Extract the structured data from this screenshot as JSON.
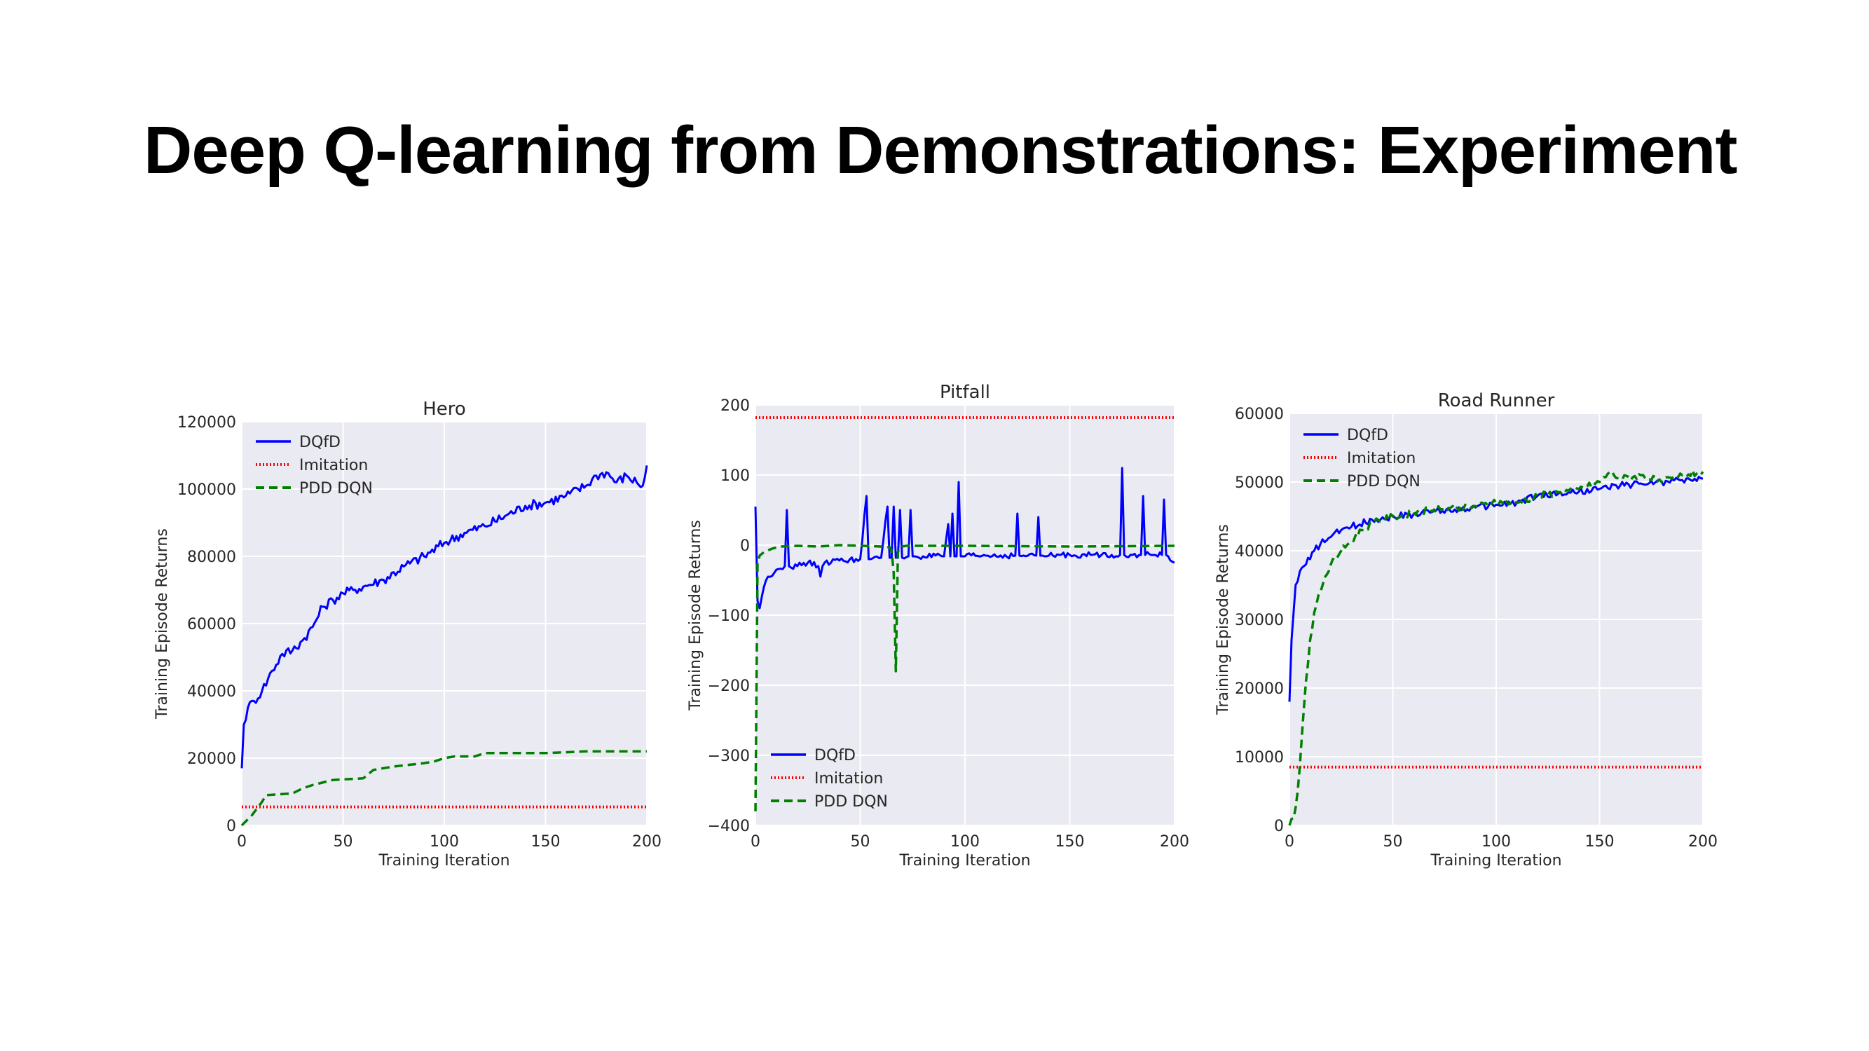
{
  "slide": {
    "title": "Deep Q-learning from Demonstrations: Experiment"
  },
  "chart_data": [
    {
      "type": "line",
      "title": "Hero",
      "xlabel": "Training Iteration",
      "ylabel": "Training Episode Returns",
      "xlim": [
        0,
        200
      ],
      "ylim": [
        0,
        120000
      ],
      "xticks": [
        0,
        50,
        100,
        150,
        200
      ],
      "yticks": [
        0,
        20000,
        40000,
        60000,
        80000,
        100000,
        120000
      ],
      "grid": true,
      "legend": "top-left",
      "series": [
        {
          "name": "DQfD",
          "color": "#0000ff",
          "style": "solid",
          "noise": 1500,
          "x": [
            0,
            1,
            3,
            6,
            10,
            15,
            20,
            25,
            30,
            35,
            40,
            45,
            50,
            55,
            60,
            70,
            80,
            90,
            100,
            110,
            120,
            130,
            140,
            150,
            160,
            170,
            175,
            180,
            185,
            190,
            195,
            198,
            200
          ],
          "y": [
            17000,
            30000,
            35000,
            37000,
            40000,
            46000,
            51000,
            52000,
            55000,
            59000,
            65000,
            67000,
            69000,
            70000,
            71000,
            73000,
            77000,
            80000,
            84000,
            87000,
            89000,
            92000,
            95000,
            96000,
            98000,
            101000,
            104000,
            105000,
            102000,
            104000,
            102000,
            101000,
            107000
          ]
        },
        {
          "name": "Imitation",
          "color": "#ff0000",
          "style": "dotted",
          "noise": 0,
          "x": [
            0,
            200
          ],
          "y": [
            5500,
            5500
          ]
        },
        {
          "name": "PDD DQN",
          "color": "#008000",
          "style": "dashed",
          "noise": 0,
          "x": [
            0,
            5,
            10,
            12,
            25,
            30,
            35,
            45,
            60,
            65,
            75,
            90,
            95,
            100,
            105,
            115,
            120,
            150,
            170,
            200
          ],
          "y": [
            0,
            3000,
            7000,
            9000,
            9500,
            11000,
            12000,
            13500,
            14000,
            16500,
            17500,
            18500,
            19000,
            20000,
            20500,
            20500,
            21500,
            21500,
            22000,
            22000
          ]
        }
      ]
    },
    {
      "type": "line",
      "title": "Pitfall",
      "xlabel": "Training Iteration",
      "ylabel": "Training Episode Returns",
      "xlim": [
        0,
        200
      ],
      "ylim": [
        -400,
        200
      ],
      "xticks": [
        0,
        50,
        100,
        150,
        200
      ],
      "yticks": [
        -400,
        -300,
        -200,
        -100,
        0,
        100,
        200
      ],
      "grid": true,
      "legend": "bottom-left",
      "series": [
        {
          "name": "DQfD",
          "color": "#0000ff",
          "style": "solid",
          "noise": 4,
          "x": [
            0,
            1,
            2,
            4,
            6,
            10,
            14,
            15,
            16,
            20,
            25,
            30,
            31,
            32,
            33,
            40,
            50,
            53,
            54,
            55,
            60,
            63,
            64,
            65,
            66,
            67,
            68,
            69,
            70,
            73,
            74,
            75,
            80,
            90,
            92,
            93,
            94,
            95,
            96,
            97,
            98,
            99,
            100,
            110,
            124,
            125,
            126,
            130,
            134,
            135,
            136,
            140,
            150,
            160,
            170,
            174,
            175,
            176,
            180,
            184,
            185,
            186,
            190,
            194,
            195,
            196,
            200
          ],
          "y": [
            55,
            -80,
            -90,
            -60,
            -45,
            -35,
            -30,
            50,
            -30,
            -30,
            -25,
            -30,
            -45,
            -30,
            -25,
            -22,
            -20,
            70,
            -20,
            -20,
            -18,
            55,
            -18,
            -18,
            55,
            -18,
            -18,
            50,
            -18,
            -16,
            50,
            -16,
            -16,
            -16,
            30,
            -16,
            45,
            -16,
            -16,
            90,
            -16,
            -16,
            -16,
            -15,
            -15,
            45,
            -15,
            -15,
            -15,
            40,
            -15,
            -15,
            -14,
            -14,
            -14,
            -14,
            110,
            -14,
            -14,
            -14,
            70,
            -14,
            -14,
            -14,
            65,
            -14,
            -25
          ]
        },
        {
          "name": "Imitation",
          "color": "#ff0000",
          "style": "dotted",
          "noise": 0,
          "x": [
            0,
            200
          ],
          "y": [
            182,
            182
          ]
        },
        {
          "name": "PDD DQN",
          "color": "#008000",
          "style": "dashed",
          "noise": 0,
          "x": [
            0,
            1,
            2,
            4,
            8,
            12,
            20,
            30,
            40,
            50,
            60,
            64,
            65,
            66,
            67,
            68,
            69,
            70,
            72,
            80,
            100,
            150,
            200
          ],
          "y": [
            -380,
            -25,
            -15,
            -10,
            -5,
            -2,
            -1,
            -2,
            0,
            -1,
            -2,
            -3,
            -8,
            -40,
            -180,
            -10,
            -3,
            -2,
            -1,
            -1,
            -1,
            -2,
            -1
          ]
        }
      ]
    },
    {
      "type": "line",
      "title": "Road Runner",
      "xlabel": "Training Iteration",
      "ylabel": "Training Episode Returns",
      "xlim": [
        0,
        200
      ],
      "ylim": [
        0,
        60000
      ],
      "xticks": [
        0,
        50,
        100,
        150,
        200
      ],
      "yticks": [
        0,
        10000,
        20000,
        30000,
        40000,
        50000,
        60000
      ],
      "grid": true,
      "legend": "top-left",
      "series": [
        {
          "name": "DQfD",
          "color": "#0000ff",
          "style": "solid",
          "noise": 500,
          "x": [
            0,
            1,
            2,
            3,
            5,
            8,
            12,
            15,
            20,
            25,
            30,
            40,
            50,
            60,
            70,
            80,
            90,
            100,
            110,
            120,
            130,
            140,
            150,
            160,
            170,
            180,
            190,
            200
          ],
          "y": [
            18000,
            27000,
            31000,
            35000,
            37000,
            38000,
            40000,
            41000,
            42000,
            43000,
            43500,
            44500,
            45000,
            45300,
            45800,
            46000,
            46300,
            46700,
            47000,
            48000,
            48300,
            48600,
            49000,
            49500,
            49800,
            50000,
            50300,
            50500
          ]
        },
        {
          "name": "Imitation",
          "color": "#ff0000",
          "style": "dotted",
          "noise": 0,
          "x": [
            0,
            200
          ],
          "y": [
            8500,
            8500
          ]
        },
        {
          "name": "PDD DQN",
          "color": "#008000",
          "style": "dashed",
          "noise": 500,
          "x": [
            0,
            2,
            4,
            6,
            8,
            10,
            12,
            15,
            18,
            20,
            25,
            30,
            35,
            40,
            50,
            60,
            70,
            80,
            90,
            100,
            110,
            120,
            130,
            140,
            150,
            155,
            160,
            170,
            180,
            190,
            200
          ],
          "y": [
            0,
            1000,
            5000,
            13000,
            21000,
            27000,
            31000,
            34000,
            36500,
            38000,
            40000,
            41500,
            43000,
            44000,
            45000,
            45500,
            46000,
            46000,
            46500,
            47000,
            47000,
            48000,
            48500,
            49000,
            50000,
            51500,
            50500,
            51000,
            50000,
            51000,
            51500
          ]
        }
      ]
    }
  ]
}
